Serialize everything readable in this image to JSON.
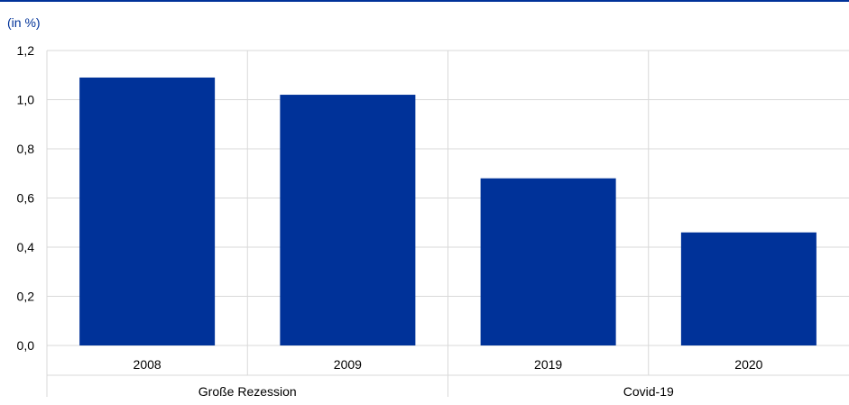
{
  "chart_data": {
    "type": "bar",
    "unit_label": "(in %)",
    "categories": [
      "2008",
      "2009",
      "2019",
      "2020"
    ],
    "groups": [
      {
        "label": "Große Rezession",
        "categories": [
          "2008",
          "2009"
        ]
      },
      {
        "label": "Covid-19",
        "categories": [
          "2019",
          "2020"
        ]
      }
    ],
    "values": [
      1.09,
      1.02,
      0.68,
      0.46
    ],
    "y_ticks": [
      "0,0",
      "0,2",
      "0,4",
      "0,6",
      "0,8",
      "1,0",
      "1,2"
    ],
    "ylim": [
      0,
      1.2
    ],
    "grid": "vertical separators between categories",
    "bar_color": "#003299",
    "unit_color": "#003299",
    "top_rule_color": "#003299",
    "gridline_color": "#d9d9d9"
  }
}
